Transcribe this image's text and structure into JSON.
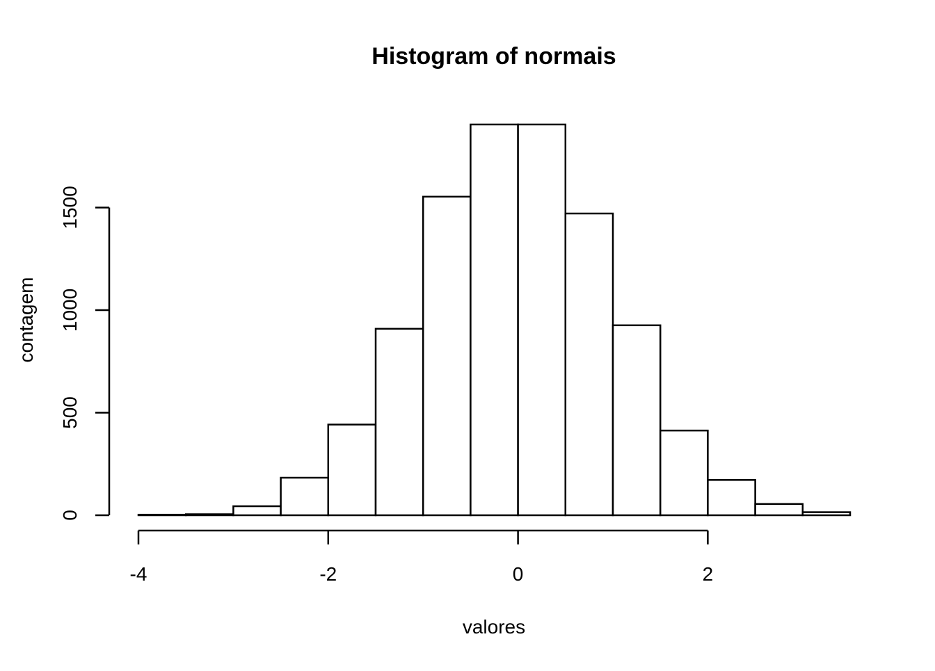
{
  "chart_data": {
    "type": "bar",
    "title": "Histogram of normais",
    "xlabel": "valores",
    "ylabel": "contagem",
    "bin_edges": [
      -4,
      -3.5,
      -3,
      -2.5,
      -2,
      -1.5,
      -1,
      -0.5,
      0,
      0.5,
      1,
      1.5,
      2,
      2.5,
      3,
      3.5
    ],
    "values": [
      1,
      5,
      44,
      183,
      442,
      909,
      1553,
      1905,
      1905,
      1471,
      926,
      413,
      172,
      55,
      15
    ],
    "xlim": [
      -4,
      3.5
    ],
    "ylim": [
      0,
      1905
    ],
    "x_ticks": [
      -4,
      -2,
      0,
      2
    ],
    "x_tick_labels": [
      "-4",
      "-2",
      "0",
      "2"
    ],
    "y_ticks": [
      0,
      500,
      1000,
      1500
    ],
    "y_tick_labels": [
      "0",
      "500",
      "1000",
      "1500"
    ],
    "grid": false,
    "colors": {
      "bar_fill": "#ffffff",
      "bar_stroke": "#000000",
      "axis": "#000000"
    }
  }
}
